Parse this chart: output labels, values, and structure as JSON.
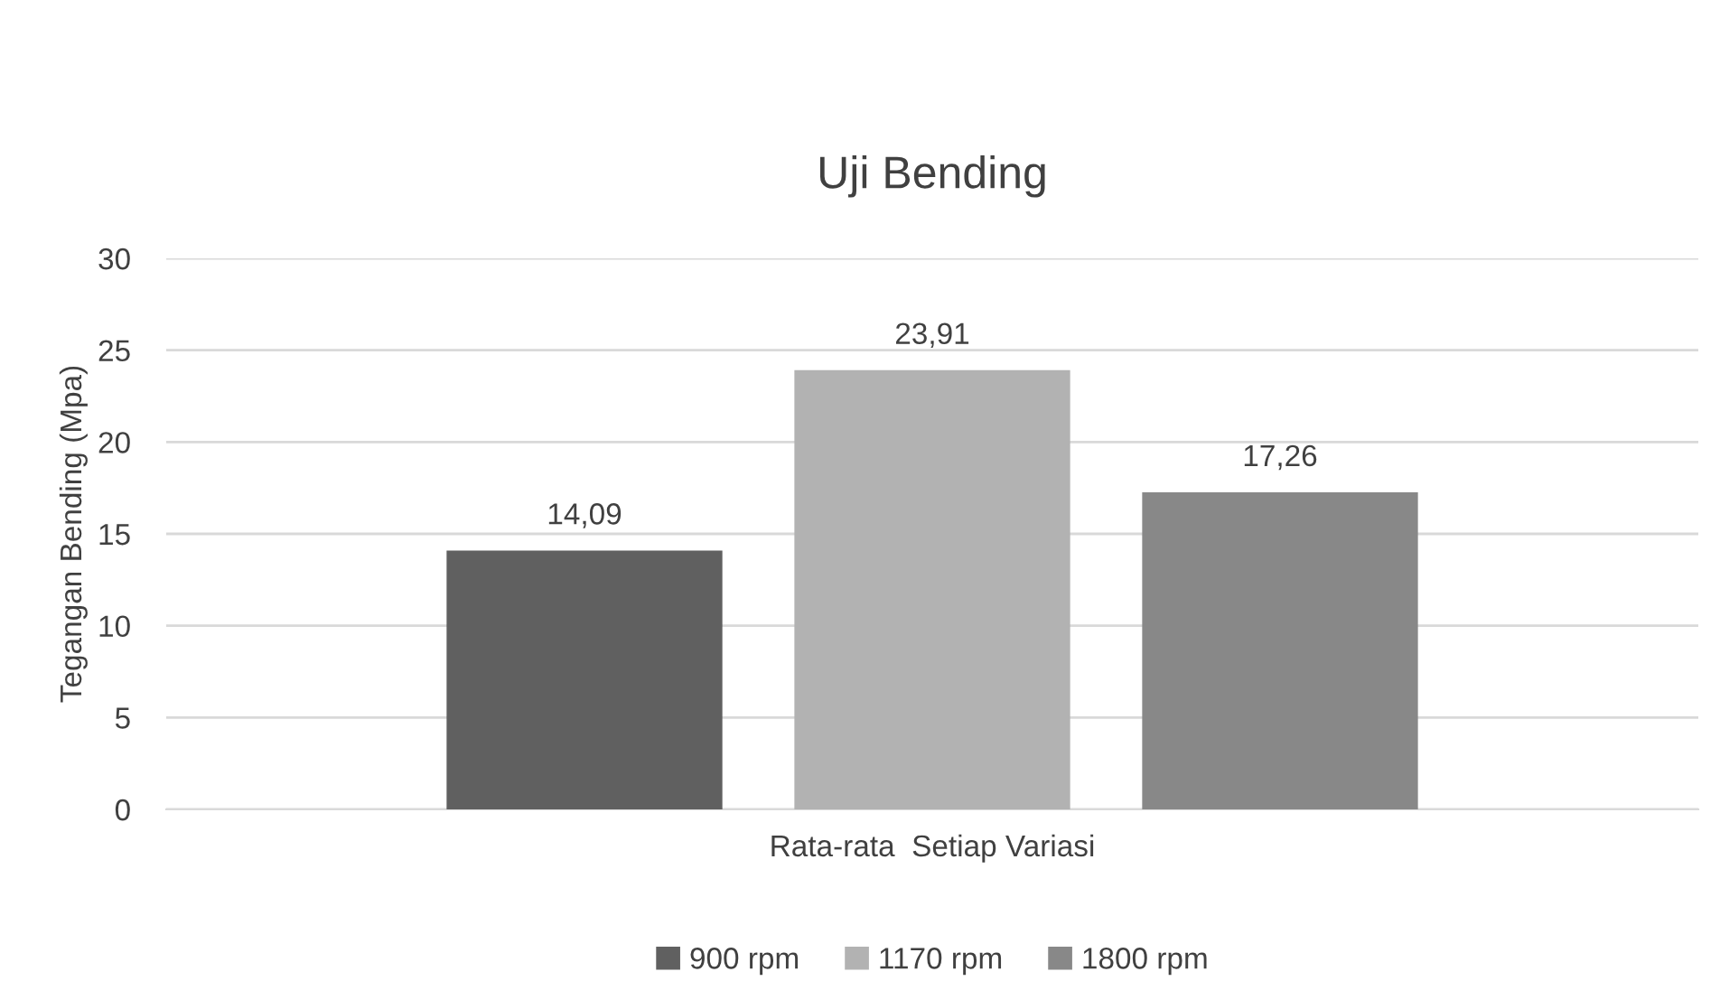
{
  "chart_data": {
    "type": "bar",
    "title": "Uji Bending",
    "ylabel": "Tegangan Bending (Mpa)",
    "categories": [
      "Rata-rata  Setiap Variasi"
    ],
    "series": [
      {
        "name": "900 rpm",
        "color": "#606060",
        "values": [
          14.09
        ],
        "value_labels": [
          "14,09"
        ]
      },
      {
        "name": "1170 rpm",
        "color": "#b2b2b2",
        "values": [
          23.91
        ],
        "value_labels": [
          "23,91"
        ]
      },
      {
        "name": "1800 rpm",
        "color": "#888888",
        "values": [
          17.26
        ],
        "value_labels": [
          "17,26"
        ]
      }
    ],
    "ylim": [
      0,
      30
    ],
    "yticks": [
      0,
      5,
      10,
      15,
      20,
      25,
      30
    ],
    "grid": "y",
    "legend": "bottom"
  }
}
